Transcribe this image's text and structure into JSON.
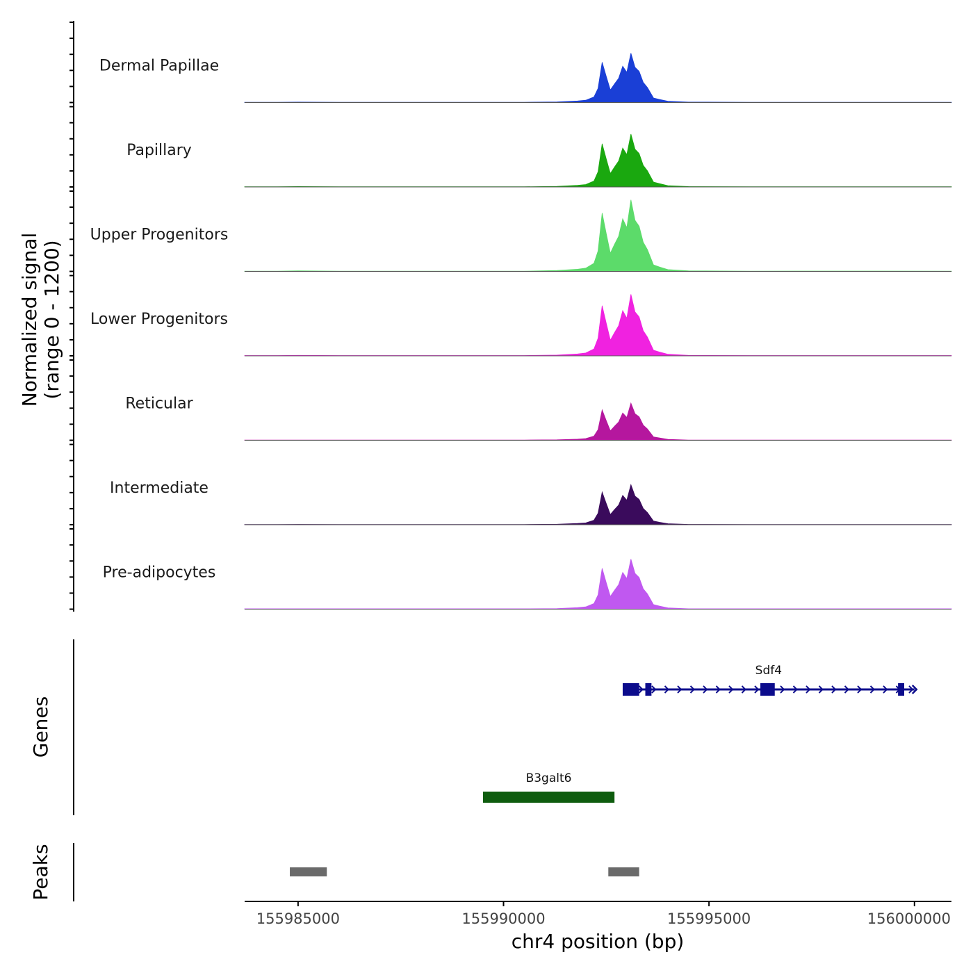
{
  "chart_data": {
    "type": "area",
    "title": "",
    "chromosome": "chr4",
    "xlabel": "chr4 position (bp)",
    "xlim": [
      155983700,
      156000900
    ],
    "xticks": [
      155985000,
      155990000,
      155995000,
      156000000
    ],
    "xtick_labels": [
      "155985000",
      "155990000",
      "155995000",
      "156000000"
    ],
    "ylabel": "Normalized signal",
    "ylabel_range": "(range 0 - 1200)",
    "ylim": [
      0,
      1200
    ],
    "tracks": [
      {
        "name": "Dermal Papillae",
        "color": "#1a3fd6",
        "scale": 0.69,
        "baseline": 4
      },
      {
        "name": "Papillary",
        "color": "#1aa80f",
        "scale": 0.74,
        "baseline": 3
      },
      {
        "name": "Upper Progenitors",
        "color": "#5cdb6a",
        "scale": 1.0,
        "baseline": 3
      },
      {
        "name": "Lower Progenitors",
        "color": "#f022e0",
        "scale": 0.86,
        "baseline": 5
      },
      {
        "name": "Reticular",
        "color": "#b5179e",
        "scale": 0.52,
        "baseline": 4
      },
      {
        "name": "Intermediate",
        "color": "#3a0b5c",
        "scale": 0.56,
        "baseline": 4
      },
      {
        "name": "Pre-adipocytes",
        "color": "#c058f0",
        "scale": 0.7,
        "baseline": 6
      }
    ],
    "peak_shape": [
      [
        155983700,
        0
      ],
      [
        155984500,
        4
      ],
      [
        155985000,
        8
      ],
      [
        155986000,
        3
      ],
      [
        155988000,
        4
      ],
      [
        155990500,
        3
      ],
      [
        155991300,
        12
      ],
      [
        155991800,
        30
      ],
      [
        155992000,
        45
      ],
      [
        155992200,
        110
      ],
      [
        155992300,
        280
      ],
      [
        155992400,
        800
      ],
      [
        155992500,
        520
      ],
      [
        155992600,
        250
      ],
      [
        155992700,
        370
      ],
      [
        155992800,
        480
      ],
      [
        155992900,
        720
      ],
      [
        155993000,
        600
      ],
      [
        155993100,
        980
      ],
      [
        155993200,
        700
      ],
      [
        155993300,
        620
      ],
      [
        155993400,
        400
      ],
      [
        155993500,
        300
      ],
      [
        155993650,
        90
      ],
      [
        155993800,
        60
      ],
      [
        155994000,
        25
      ],
      [
        155994500,
        8
      ],
      [
        155996000,
        4
      ],
      [
        155998000,
        5
      ],
      [
        156000900,
        2
      ]
    ],
    "genes": [
      {
        "name": "Sdf4",
        "start": 155992900,
        "end": 156000000,
        "strand": "+",
        "color": "#0c0c8c",
        "exons": [
          [
            155992900,
            155993300
          ],
          [
            155993450,
            155993600
          ],
          [
            155996250,
            155996600
          ],
          [
            155999600,
            155999750
          ]
        ]
      },
      {
        "name": "B3galt6",
        "start": 155989500,
        "end": 155992700,
        "strand": "+",
        "color": "#0e5c0e",
        "exons": []
      }
    ],
    "genes_label": "Genes",
    "peaks": [
      [
        155984800,
        155985700
      ],
      [
        155992550,
        155993300
      ]
    ],
    "peaks_color": "#6a6a6a",
    "peaks_label": "Peaks"
  }
}
